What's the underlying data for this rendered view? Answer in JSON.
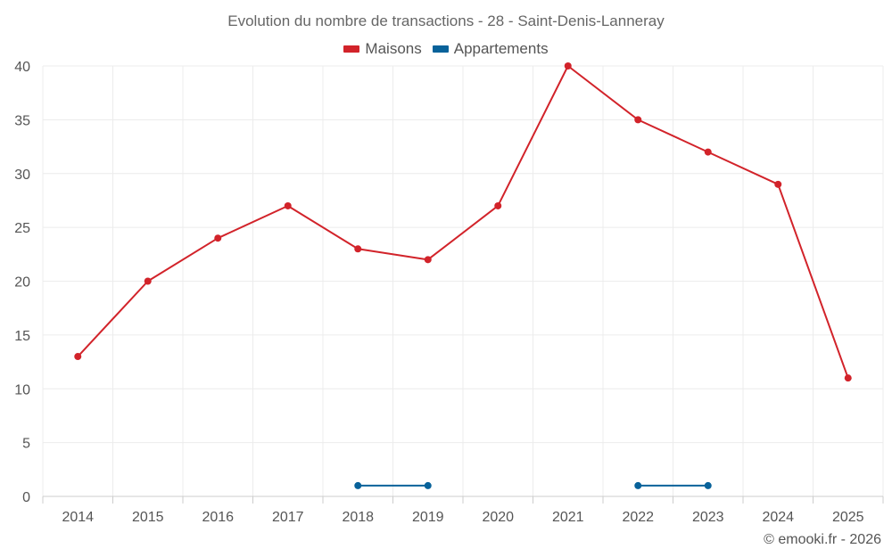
{
  "chart_data": {
    "type": "line",
    "title": "Evolution du nombre de transactions - 28 - Saint-Denis-Lanneray",
    "categories": [
      "2014",
      "2015",
      "2016",
      "2017",
      "2018",
      "2019",
      "2020",
      "2021",
      "2022",
      "2023",
      "2024",
      "2025"
    ],
    "ylim": [
      0,
      40
    ],
    "yticks": [
      "0",
      "5",
      "10",
      "15",
      "20",
      "25",
      "30",
      "35",
      "40"
    ],
    "grid": true,
    "legend_position": "top-center",
    "series": [
      {
        "name": "Maisons",
        "color": "#d2232a",
        "values": [
          13,
          20,
          24,
          27,
          23,
          22,
          27,
          40,
          35,
          32,
          29,
          11
        ]
      },
      {
        "name": "Appartements",
        "color": "#08629a",
        "values": [
          null,
          null,
          null,
          null,
          1,
          1,
          null,
          null,
          1,
          1,
          null,
          null
        ]
      }
    ]
  },
  "credit": "© emooki.fr - 2026"
}
